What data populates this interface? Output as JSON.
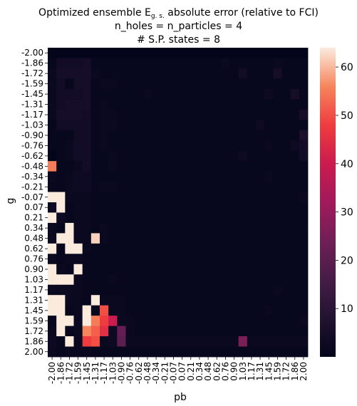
{
  "chart_data": {
    "type": "heatmap",
    "title_lines": [
      "Optimized ensemble E",
      "n_holes = n_particles = 4",
      "# S.P. states = 8"
    ],
    "title_subscript": "g. s.",
    "title_suffix": "  absolute error (relative to FCI)",
    "xlabel": "pb",
    "ylabel": "g",
    "x_ticks": [
      "-2.00",
      "-1.86",
      "-1.72",
      "-1.59",
      "-1.45",
      "-1.31",
      "-1.17",
      "-1.03",
      "-0.90",
      "-0.76",
      "-0.62",
      "-0.48",
      "-0.34",
      "-0.21",
      "-0.07",
      "0.07",
      "0.21",
      "0.34",
      "0.48",
      "0.62",
      "0.76",
      "0.90",
      "1.03",
      "1.17",
      "1.31",
      "1.45",
      "1.59",
      "1.72",
      "1.86",
      "2.00"
    ],
    "y_ticks": [
      "-2.00",
      "-1.86",
      "-1.72",
      "-1.59",
      "-1.45",
      "-1.31",
      "-1.17",
      "-1.03",
      "-0.90",
      "-0.76",
      "-0.62",
      "-0.48",
      "-0.34",
      "-0.21",
      "-0.07",
      "0.07",
      "0.21",
      "0.34",
      "0.48",
      "0.62",
      "0.76",
      "0.90",
      "1.03",
      "1.17",
      "1.31",
      "1.45",
      "1.59",
      "1.72",
      "1.86",
      "2.00"
    ],
    "colorbar": {
      "min": 0,
      "max": 64,
      "ticks": [
        10,
        20,
        30,
        40,
        50,
        60
      ]
    },
    "colormap": "rocket",
    "values": [
      [
        0,
        0,
        0,
        0,
        0,
        0,
        0,
        0,
        0,
        0,
        0,
        0,
        0,
        0,
        0,
        0,
        0,
        0,
        0,
        0,
        0,
        0,
        0,
        0,
        0,
        0,
        0,
        0,
        0,
        0
      ],
      [
        1,
        4,
        4,
        4,
        5,
        1,
        1,
        1,
        1,
        1,
        1,
        1,
        1,
        1,
        1,
        1,
        1,
        1,
        1,
        1,
        2,
        1,
        1,
        1,
        1,
        1,
        2,
        1,
        1,
        1
      ],
      [
        2,
        5,
        5,
        5,
        5,
        2,
        1,
        1,
        1,
        1,
        1,
        1,
        1,
        1,
        1,
        1,
        1,
        1,
        1,
        1,
        1,
        1,
        4,
        1,
        1,
        1,
        5,
        1,
        1,
        1
      ],
      [
        2,
        4,
        1,
        5,
        5,
        1,
        2,
        2,
        1,
        1,
        1,
        1,
        1,
        1,
        1,
        1,
        1,
        1,
        1,
        1,
        1,
        1,
        1,
        1,
        1,
        1,
        1,
        1,
        1,
        1
      ],
      [
        2,
        4,
        4,
        4,
        5,
        1,
        1,
        1,
        1,
        1,
        1,
        2,
        1,
        1,
        1,
        1,
        1,
        1,
        1,
        1,
        1,
        1,
        1,
        1,
        1,
        3,
        1,
        1,
        5,
        1
      ],
      [
        2,
        4,
        5,
        5,
        5,
        1,
        2,
        1,
        1,
        1,
        1,
        1,
        1,
        1,
        1,
        1,
        1,
        1,
        1,
        1,
        1,
        1,
        1,
        1,
        1,
        1,
        1,
        1,
        1,
        1
      ],
      [
        2,
        5,
        5,
        5,
        4,
        1,
        2,
        2,
        1,
        1,
        1,
        1,
        1,
        1,
        1,
        1,
        1,
        1,
        1,
        1,
        1,
        1,
        1,
        1,
        1,
        1,
        1,
        1,
        1,
        5
      ],
      [
        1,
        4,
        4,
        4,
        4,
        1,
        2,
        2,
        1,
        1,
        1,
        1,
        1,
        1,
        1,
        1,
        1,
        1,
        1,
        1,
        1,
        1,
        1,
        1,
        3,
        1,
        1,
        1,
        1,
        1
      ],
      [
        1,
        1,
        1,
        4,
        4,
        1,
        2,
        1,
        1,
        1,
        1,
        1,
        1,
        1,
        1,
        1,
        1,
        1,
        1,
        1,
        1,
        1,
        1,
        1,
        1,
        1,
        1,
        1,
        1,
        6
      ],
      [
        1,
        1,
        2,
        4,
        4,
        1,
        2,
        1,
        1,
        1,
        1,
        1,
        1,
        1,
        1,
        1,
        1,
        1,
        1,
        1,
        1,
        1,
        1,
        1,
        1,
        2,
        1,
        1,
        3,
        4
      ],
      [
        0,
        1,
        2,
        4,
        4,
        1,
        1,
        2,
        1,
        1,
        1,
        1,
        1,
        1,
        1,
        1,
        1,
        1,
        1,
        1,
        1,
        1,
        3,
        1,
        1,
        1,
        1,
        1,
        1,
        4
      ],
      [
        55,
        1,
        1,
        2,
        4,
        1,
        1,
        2,
        1,
        1,
        1,
        1,
        1,
        1,
        1,
        1,
        1,
        1,
        1,
        1,
        1,
        1,
        1,
        1,
        1,
        1,
        1,
        1,
        1,
        1
      ],
      [
        2,
        1,
        2,
        3,
        3,
        1,
        1,
        1,
        1,
        1,
        1,
        1,
        1,
        1,
        1,
        1,
        1,
        1,
        1,
        1,
        1,
        1,
        1,
        1,
        1,
        2,
        1,
        1,
        1,
        1
      ],
      [
        1,
        1,
        2,
        3,
        3,
        1,
        2,
        2,
        1,
        1,
        1,
        1,
        1,
        1,
        1,
        1,
        1,
        1,
        1,
        1,
        1,
        1,
        1,
        1,
        1,
        1,
        1,
        1,
        1,
        1
      ],
      [
        64,
        64,
        2,
        2,
        2,
        1,
        1,
        1,
        1,
        1,
        1,
        1,
        1,
        1,
        1,
        1,
        1,
        1,
        1,
        1,
        1,
        1,
        1,
        1,
        1,
        1,
        1,
        1,
        1,
        2
      ],
      [
        3,
        64,
        1,
        2,
        2,
        1,
        1,
        1,
        1,
        1,
        1,
        1,
        1,
        1,
        1,
        1,
        1,
        1,
        1,
        1,
        1,
        1,
        1,
        1,
        1,
        1,
        1,
        1,
        1,
        1
      ],
      [
        64,
        3,
        1,
        2,
        2,
        1,
        1,
        1,
        1,
        1,
        1,
        1,
        1,
        1,
        1,
        1,
        1,
        1,
        1,
        1,
        1,
        1,
        1,
        1,
        1,
        1,
        1,
        1,
        1,
        1
      ],
      [
        2,
        1,
        64,
        2,
        2,
        1,
        2,
        1,
        1,
        1,
        1,
        1,
        1,
        1,
        1,
        1,
        1,
        1,
        1,
        1,
        1,
        1,
        1,
        1,
        1,
        1,
        1,
        1,
        1,
        1
      ],
      [
        2,
        64,
        64,
        2,
        2,
        62,
        2,
        1,
        1,
        1,
        1,
        1,
        1,
        1,
        1,
        1,
        1,
        1,
        1,
        1,
        1,
        1,
        1,
        1,
        1,
        1,
        1,
        1,
        1,
        1
      ],
      [
        64,
        1,
        64,
        64,
        2,
        1,
        1,
        1,
        1,
        1,
        1,
        1,
        1,
        1,
        1,
        1,
        1,
        1,
        1,
        1,
        1,
        1,
        1,
        1,
        1,
        1,
        1,
        1,
        1,
        1
      ],
      [
        2,
        1,
        2,
        2,
        1,
        1,
        1,
        1,
        1,
        1,
        1,
        1,
        1,
        1,
        1,
        1,
        1,
        1,
        1,
        1,
        1,
        1,
        1,
        1,
        1,
        1,
        1,
        1,
        1,
        1
      ],
      [
        64,
        2,
        1,
        64,
        1,
        1,
        1,
        1,
        1,
        1,
        1,
        1,
        1,
        1,
        1,
        1,
        1,
        1,
        1,
        1,
        1,
        1,
        1,
        1,
        1,
        1,
        1,
        1,
        1,
        1
      ],
      [
        64,
        64,
        64,
        2,
        1,
        1,
        1,
        2,
        1,
        1,
        1,
        1,
        1,
        1,
        1,
        1,
        1,
        1,
        1,
        1,
        1,
        1,
        1,
        1,
        1,
        1,
        1,
        1,
        1,
        1
      ],
      [
        2,
        2,
        2,
        2,
        1,
        1,
        1,
        1,
        1,
        1,
        1,
        1,
        1,
        1,
        1,
        1,
        1,
        1,
        1,
        1,
        1,
        1,
        1,
        1,
        1,
        1,
        2,
        1,
        1,
        1
      ],
      [
        64,
        64,
        2,
        2,
        1,
        64,
        2,
        2,
        2,
        1,
        1,
        1,
        1,
        1,
        1,
        1,
        1,
        1,
        1,
        1,
        1,
        1,
        1,
        1,
        1,
        1,
        1,
        1,
        1,
        1
      ],
      [
        64,
        64,
        1,
        2,
        64,
        1,
        50,
        2,
        2,
        1,
        1,
        1,
        1,
        1,
        1,
        1,
        1,
        1,
        1,
        1,
        1,
        1,
        1,
        1,
        1,
        2,
        1,
        1,
        1,
        1
      ],
      [
        1,
        64,
        64,
        2,
        64,
        55,
        48,
        40,
        2,
        2,
        1,
        1,
        1,
        1,
        1,
        1,
        1,
        1,
        1,
        1,
        1,
        1,
        1,
        1,
        1,
        1,
        1,
        1,
        1,
        2
      ],
      [
        2,
        64,
        1,
        2,
        56,
        52,
        45,
        3,
        22,
        2,
        1,
        1,
        1,
        1,
        1,
        1,
        1,
        1,
        1,
        1,
        1,
        1,
        1,
        1,
        1,
        1,
        1,
        1,
        1,
        1
      ],
      [
        3,
        1,
        64,
        2,
        48,
        50,
        2,
        3,
        20,
        2,
        2,
        2,
        2,
        2,
        2,
        2,
        2,
        2,
        2,
        2,
        2,
        2,
        26,
        2,
        2,
        2,
        2,
        2,
        2,
        2
      ],
      [
        2,
        1,
        2,
        2,
        2,
        1,
        1,
        1,
        1,
        1,
        1,
        1,
        1,
        1,
        1,
        1,
        1,
        1,
        1,
        1,
        1,
        1,
        1,
        1,
        1,
        1,
        1,
        1,
        1,
        1
      ]
    ]
  }
}
